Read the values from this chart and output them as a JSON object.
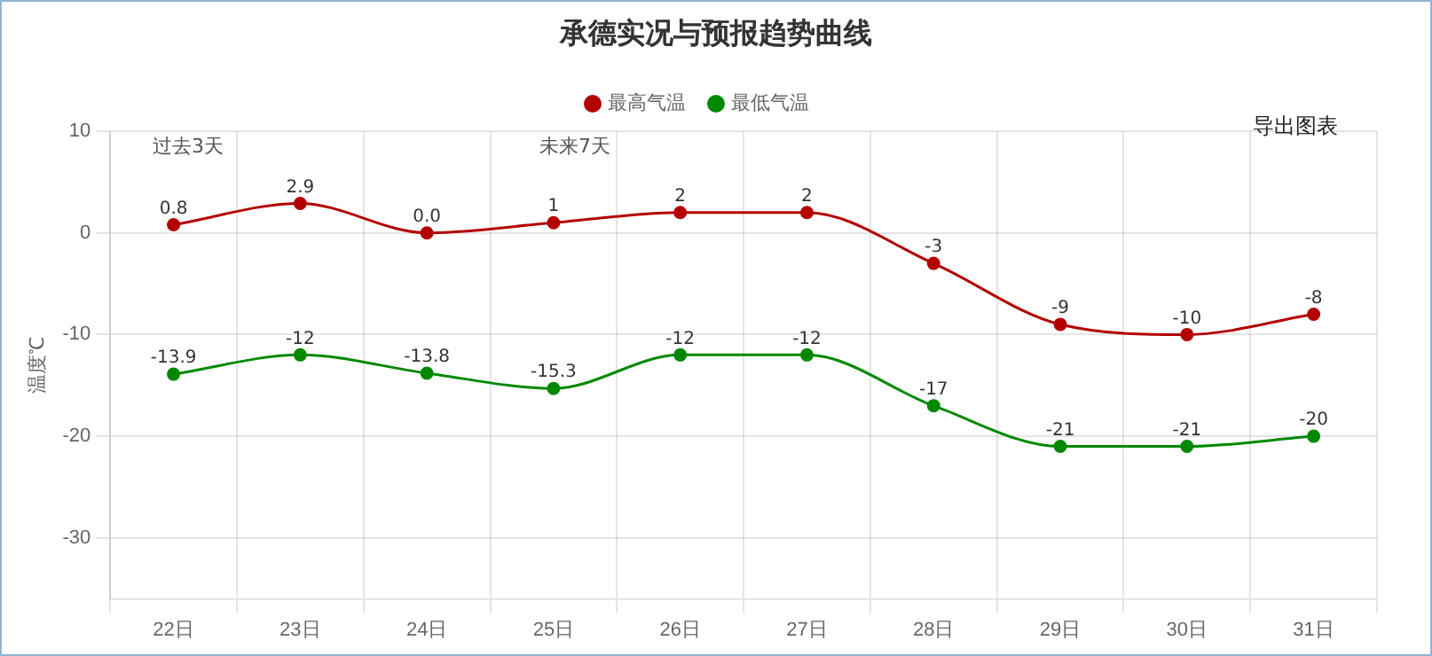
{
  "chart_data": {
    "type": "line",
    "title": "承德实况与预报趋势曲线",
    "ylabel": "温度℃",
    "categories": [
      "22日",
      "23日",
      "24日",
      "25日",
      "26日",
      "27日",
      "28日",
      "29日",
      "30日",
      "31日"
    ],
    "series": [
      {
        "name": "最高气温",
        "color": "#b30000",
        "values": [
          0.8,
          2.9,
          0,
          1,
          2,
          2,
          -3,
          -9,
          -10,
          -8
        ],
        "value_labels": [
          "0.8",
          "2.9",
          "0.0",
          "1",
          "2",
          "2",
          "-3",
          "-9",
          "-10",
          "-8"
        ]
      },
      {
        "name": "最低气温",
        "color": "#008800",
        "values": [
          -13.9,
          -12,
          -13.8,
          -15.3,
          -12,
          -12,
          -17,
          -21,
          -21,
          -20
        ],
        "value_labels": [
          "-13.9",
          "-12",
          "-13.8",
          "-15.3",
          "-12",
          "-12",
          "-17",
          "-21",
          "-21",
          "-20"
        ]
      }
    ],
    "ylim": [
      -36,
      10
    ],
    "yticks": [
      10,
      0,
      -10,
      -20,
      -30
    ],
    "grid": true,
    "legend": "top",
    "marker": "circle",
    "line_style": "solid",
    "annotations": [
      "过去3天",
      "未来7天",
      "导出图表"
    ]
  }
}
